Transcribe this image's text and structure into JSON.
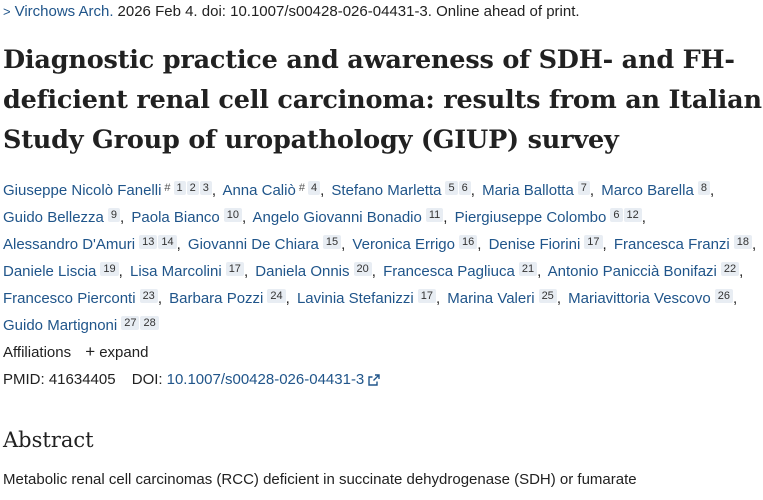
{
  "citation": {
    "journal": "Virchows Arch.",
    "details": "2026 Feb 4. doi: 10.1007/s00428-026-04431-3. Online ahead of print."
  },
  "title": "Diagnostic practice and awareness of SDH- and FH-deficient renal cell carcinoma: results from an Italian Study Group of uropathology (GIUP) survey",
  "authors": [
    {
      "name": "Giuseppe Nicolò Fanelli",
      "eq": "#",
      "refs": [
        "1",
        "2",
        "3"
      ]
    },
    {
      "name": "Anna Caliò",
      "eq": "#",
      "refs": [
        "4"
      ]
    },
    {
      "name": "Stefano Marletta",
      "refs": [
        "5",
        "6"
      ]
    },
    {
      "name": "Maria Ballotta",
      "refs": [
        "7"
      ]
    },
    {
      "name": "Marco Barella",
      "refs": [
        "8"
      ]
    },
    {
      "name": "Guido Bellezza",
      "refs": [
        "9"
      ]
    },
    {
      "name": "Paola Bianco",
      "refs": [
        "10"
      ]
    },
    {
      "name": "Angelo Giovanni Bonadio",
      "refs": [
        "11"
      ]
    },
    {
      "name": "Piergiuseppe Colombo",
      "refs": [
        "6",
        "12"
      ]
    },
    {
      "name": "Alessandro D'Amuri",
      "refs": [
        "13",
        "14"
      ]
    },
    {
      "name": "Giovanni De Chiara",
      "refs": [
        "15"
      ]
    },
    {
      "name": "Veronica Errigo",
      "refs": [
        "16"
      ]
    },
    {
      "name": "Denise Fiorini",
      "refs": [
        "17"
      ]
    },
    {
      "name": "Francesca Franzi",
      "refs": [
        "18"
      ]
    },
    {
      "name": "Daniele Liscia",
      "refs": [
        "19"
      ]
    },
    {
      "name": "Lisa Marcolini",
      "refs": [
        "17"
      ]
    },
    {
      "name": "Daniela Onnis",
      "refs": [
        "20"
      ]
    },
    {
      "name": "Francesca Pagliuca",
      "refs": [
        "21"
      ]
    },
    {
      "name": "Antonio Paniccià Bonifazi",
      "refs": [
        "22"
      ]
    },
    {
      "name": "Francesco Pierconti",
      "refs": [
        "23"
      ]
    },
    {
      "name": "Barbara Pozzi",
      "refs": [
        "24"
      ]
    },
    {
      "name": "Lavinia Stefanizzi",
      "refs": [
        "17"
      ]
    },
    {
      "name": "Marina Valeri",
      "refs": [
        "25"
      ]
    },
    {
      "name": "Mariavittoria Vescovo",
      "refs": [
        "26"
      ]
    },
    {
      "name": "Guido Martignoni",
      "refs": [
        "27",
        "28"
      ]
    }
  ],
  "affiliations": {
    "label": "Affiliations",
    "expand": "expand"
  },
  "identifiers": {
    "pmid_label": "PMID:",
    "pmid": "41634405",
    "doi_label": "DOI:",
    "doi": "10.1007/s00428-026-04431-3"
  },
  "abstract": {
    "heading": "Abstract",
    "text": "Metabolic renal cell carcinomas (RCC) deficient in succinate dehydrogenase (SDH) or fumarate"
  }
}
